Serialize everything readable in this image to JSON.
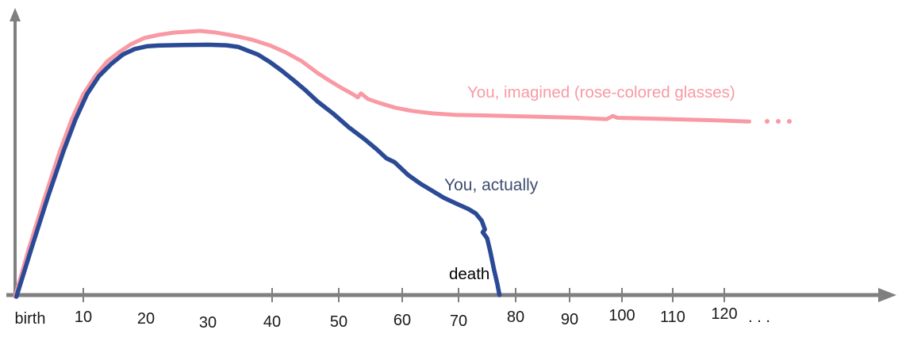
{
  "figure": {
    "background": "#ffffff"
  },
  "colors": {
    "imagined": "#F999A4",
    "actual": "#2B4A96",
    "actual_label": "#3D4E70",
    "axis": "#7F7F7F",
    "tick_label": "#1a1a1a",
    "death_label": "#000000"
  },
  "labels": {
    "imagined_curve": "You, imagined (rose-colored glasses)",
    "actual_curve": "You, actually",
    "death": "death",
    "axis_ellipsis": ". . ."
  },
  "chart_data": {
    "type": "line",
    "title": "",
    "x_tick_labels": [
      "birth",
      "10",
      "20",
      "30",
      "40",
      "50",
      "60",
      "70",
      "80",
      "90",
      "100",
      "110",
      "120",
      ". . ."
    ],
    "x_axis_note": "age in years from birth; ticks every 10 years, axis arrow continues past 120",
    "y_axis_tick_labels": [],
    "series": [
      {
        "name": "You, imagined (rose-colored glasses)",
        "color": "#F999A4",
        "continuation": "...",
        "points": [
          [
            0,
            0.0
          ],
          [
            2,
            0.18
          ],
          [
            4.3,
            0.37
          ],
          [
            6.6,
            0.55
          ],
          [
            8.3,
            0.667
          ],
          [
            10,
            0.762
          ],
          [
            11.9,
            0.83
          ],
          [
            13.8,
            0.885
          ],
          [
            15.7,
            0.92
          ],
          [
            17.6,
            0.95
          ],
          [
            19.7,
            0.973
          ],
          [
            22,
            0.985
          ],
          [
            24.6,
            0.994
          ],
          [
            27.2,
            0.998
          ],
          [
            28.7,
            1.0
          ],
          [
            31,
            0.995
          ],
          [
            34.1,
            0.982
          ],
          [
            36.9,
            0.967
          ],
          [
            39.6,
            0.946
          ],
          [
            42,
            0.92
          ],
          [
            44.4,
            0.887
          ],
          [
            46.8,
            0.842
          ],
          [
            48.6,
            0.813
          ],
          [
            50.4,
            0.786
          ],
          [
            52.2,
            0.762
          ],
          [
            53,
            0.75
          ],
          [
            53.5,
            0.765
          ],
          [
            54.6,
            0.744
          ],
          [
            56.4,
            0.729
          ],
          [
            58.9,
            0.711
          ],
          [
            61.6,
            0.699
          ],
          [
            65,
            0.69
          ],
          [
            69,
            0.684
          ],
          [
            74,
            0.682
          ],
          [
            80,
            0.679
          ],
          [
            85.7,
            0.676
          ],
          [
            91.4,
            0.673
          ],
          [
            97,
            0.668
          ],
          [
            98.2,
            0.68
          ],
          [
            99.1,
            0.673
          ],
          [
            105.7,
            0.67
          ],
          [
            112,
            0.667
          ],
          [
            118.1,
            0.664
          ],
          [
            125,
            0.659
          ]
        ]
      },
      {
        "name": "You, actually",
        "color": "#2B4A96",
        "ends_at_age": 76,
        "points": [
          [
            0.2,
            0.0
          ],
          [
            2.5,
            0.19
          ],
          [
            4.8,
            0.375
          ],
          [
            7.1,
            0.548
          ],
          [
            8.85,
            0.667
          ],
          [
            10.6,
            0.762
          ],
          [
            12.5,
            0.83
          ],
          [
            14.4,
            0.875
          ],
          [
            16.3,
            0.911
          ],
          [
            18.2,
            0.932
          ],
          [
            20.1,
            0.942
          ],
          [
            22,
            0.945
          ],
          [
            25.9,
            0.947
          ],
          [
            30,
            0.948
          ],
          [
            32.9,
            0.946
          ],
          [
            34.7,
            0.94
          ],
          [
            36.2,
            0.926
          ],
          [
            37.8,
            0.911
          ],
          [
            39.6,
            0.884
          ],
          [
            41.4,
            0.851
          ],
          [
            43.2,
            0.815
          ],
          [
            45,
            0.777
          ],
          [
            46.8,
            0.735
          ],
          [
            49.2,
            0.688
          ],
          [
            51.6,
            0.637
          ],
          [
            54.1,
            0.592
          ],
          [
            56,
            0.554
          ],
          [
            57.5,
            0.521
          ],
          [
            58.8,
            0.506
          ],
          [
            61,
            0.458
          ],
          [
            63,
            0.426
          ],
          [
            65,
            0.399
          ],
          [
            67,
            0.372
          ],
          [
            69,
            0.351
          ],
          [
            71.2,
            0.33
          ],
          [
            72.6,
            0.313
          ],
          [
            73.7,
            0.286
          ],
          [
            74.3,
            0.253
          ],
          [
            73.9,
            0.242
          ],
          [
            74.7,
            0.22
          ],
          [
            75.3,
            0.17
          ],
          [
            76,
            0.101
          ],
          [
            76.6,
            0.048
          ],
          [
            77,
            0.006
          ]
        ]
      }
    ],
    "annotations": [
      {
        "text": "death",
        "x_age": 76
      }
    ]
  }
}
